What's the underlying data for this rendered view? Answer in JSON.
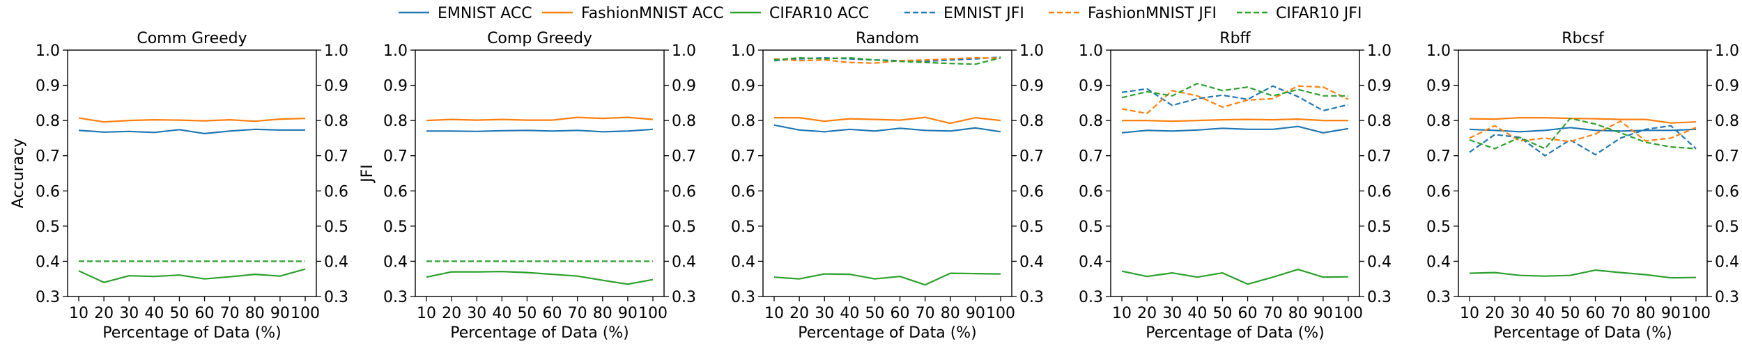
{
  "legend": {
    "placement": "top-center",
    "entries": [
      {
        "label": "EMNIST ACC",
        "color": "#1f77b4",
        "dash": "solid"
      },
      {
        "label": "FashionMNIST ACC",
        "color": "#ff7f0e",
        "dash": "solid"
      },
      {
        "label": "CIFAR10 ACC",
        "color": "#2ca02c",
        "dash": "solid"
      },
      {
        "label": "EMNIST JFI",
        "color": "#1f77b4",
        "dash": "dashed"
      },
      {
        "label": "FashionMNIST JFI",
        "color": "#ff7f0e",
        "dash": "dashed"
      },
      {
        "label": "CIFAR10 JFI",
        "color": "#2ca02c",
        "dash": "dashed"
      }
    ]
  },
  "chart_data": [
    {
      "type": "line",
      "title": "Comm Greedy",
      "xlabel": "Percentage of Data (%)",
      "ylabel": "Accuracy",
      "y2label": "JFI",
      "x": [
        10,
        20,
        30,
        40,
        50,
        60,
        70,
        80,
        90,
        100
      ],
      "ylim": [
        0.3,
        1.0
      ],
      "y2lim": [
        0.3,
        1.0
      ],
      "yticks": [
        "0.3",
        "0.4",
        "0.5",
        "0.6",
        "0.7",
        "0.8",
        "0.9",
        "1.0"
      ],
      "series": [
        {
          "name": "EMNIST ACC",
          "axis": "left",
          "values": [
            0.772,
            0.767,
            0.769,
            0.766,
            0.774,
            0.763,
            0.77,
            0.775,
            0.773,
            0.773
          ]
        },
        {
          "name": "FashionMNIST ACC",
          "axis": "left",
          "values": [
            0.807,
            0.796,
            0.8,
            0.802,
            0.801,
            0.799,
            0.802,
            0.798,
            0.804,
            0.806
          ]
        },
        {
          "name": "CIFAR10 ACC",
          "axis": "left",
          "values": [
            0.373,
            0.34,
            0.359,
            0.357,
            0.361,
            0.35,
            0.356,
            0.363,
            0.358,
            0.378
          ]
        },
        {
          "name": "CIFAR10 JFI",
          "axis": "right",
          "values": [
            0.4,
            0.4,
            0.4,
            0.4,
            0.4,
            0.4,
            0.4,
            0.4,
            0.4,
            0.4
          ]
        }
      ]
    },
    {
      "type": "line",
      "title": "Comp Greedy",
      "xlabel": "Percentage of Data (%)",
      "ylabel": "",
      "y2label": "",
      "x": [
        10,
        20,
        30,
        40,
        50,
        60,
        70,
        80,
        90,
        100
      ],
      "ylim": [
        0.3,
        1.0
      ],
      "y2lim": [
        0.3,
        1.0
      ],
      "yticks": [
        "0.3",
        "0.4",
        "0.5",
        "0.6",
        "0.7",
        "0.8",
        "0.9",
        "1.0"
      ],
      "series": [
        {
          "name": "EMNIST ACC",
          "axis": "left",
          "values": [
            0.77,
            0.77,
            0.769,
            0.771,
            0.772,
            0.77,
            0.772,
            0.768,
            0.77,
            0.775
          ]
        },
        {
          "name": "FashionMNIST ACC",
          "axis": "left",
          "values": [
            0.8,
            0.803,
            0.801,
            0.803,
            0.801,
            0.801,
            0.809,
            0.806,
            0.809,
            0.803
          ]
        },
        {
          "name": "CIFAR10 ACC",
          "axis": "left",
          "values": [
            0.355,
            0.37,
            0.37,
            0.371,
            0.368,
            0.363,
            0.358,
            0.346,
            0.335,
            0.348
          ]
        },
        {
          "name": "CIFAR10 JFI",
          "axis": "right",
          "values": [
            0.4,
            0.4,
            0.4,
            0.4,
            0.4,
            0.4,
            0.4,
            0.4,
            0.4,
            0.4
          ]
        }
      ]
    },
    {
      "type": "line",
      "title": "Random",
      "xlabel": "Percentage of Data (%)",
      "ylabel": "",
      "y2label": "",
      "x": [
        10,
        20,
        30,
        40,
        50,
        60,
        70,
        80,
        90,
        100
      ],
      "ylim": [
        0.3,
        1.0
      ],
      "y2lim": [
        0.3,
        1.0
      ],
      "yticks": [
        "0.3",
        "0.4",
        "0.5",
        "0.6",
        "0.7",
        "0.8",
        "0.9",
        "1.0"
      ],
      "series": [
        {
          "name": "EMNIST ACC",
          "axis": "left",
          "values": [
            0.787,
            0.773,
            0.768,
            0.775,
            0.77,
            0.778,
            0.772,
            0.77,
            0.779,
            0.768
          ]
        },
        {
          "name": "FashionMNIST ACC",
          "axis": "left",
          "values": [
            0.808,
            0.808,
            0.798,
            0.805,
            0.803,
            0.801,
            0.809,
            0.792,
            0.808,
            0.8
          ]
        },
        {
          "name": "CIFAR10 ACC",
          "axis": "left",
          "values": [
            0.355,
            0.35,
            0.364,
            0.363,
            0.35,
            0.357,
            0.333,
            0.366,
            0.365,
            0.364
          ]
        },
        {
          "name": "EMNIST JFI",
          "axis": "right",
          "values": [
            0.97,
            0.975,
            0.978,
            0.975,
            0.972,
            0.97,
            0.968,
            0.972,
            0.975,
            0.98
          ]
        },
        {
          "name": "FashionMNIST JFI",
          "axis": "right",
          "values": [
            0.975,
            0.97,
            0.972,
            0.965,
            0.963,
            0.97,
            0.972,
            0.975,
            0.978,
            0.977
          ]
        },
        {
          "name": "CIFAR10 JFI",
          "axis": "right",
          "values": [
            0.972,
            0.978,
            0.975,
            0.978,
            0.972,
            0.968,
            0.965,
            0.962,
            0.96,
            0.978
          ]
        }
      ]
    },
    {
      "type": "line",
      "title": "Rbff",
      "xlabel": "Percentage of Data (%)",
      "ylabel": "",
      "y2label": "",
      "x": [
        10,
        20,
        30,
        40,
        50,
        60,
        70,
        80,
        90,
        100
      ],
      "ylim": [
        0.3,
        1.0
      ],
      "y2lim": [
        0.3,
        1.0
      ],
      "yticks": [
        "0.3",
        "0.4",
        "0.5",
        "0.6",
        "0.7",
        "0.8",
        "0.9",
        "1.0"
      ],
      "series": [
        {
          "name": "EMNIST ACC",
          "axis": "left",
          "values": [
            0.765,
            0.772,
            0.77,
            0.773,
            0.778,
            0.775,
            0.775,
            0.783,
            0.765,
            0.777
          ]
        },
        {
          "name": "FashionMNIST ACC",
          "axis": "left",
          "values": [
            0.8,
            0.8,
            0.798,
            0.8,
            0.802,
            0.803,
            0.802,
            0.804,
            0.8,
            0.8
          ]
        },
        {
          "name": "CIFAR10 ACC",
          "axis": "left",
          "values": [
            0.372,
            0.357,
            0.367,
            0.355,
            0.367,
            0.335,
            0.355,
            0.377,
            0.355,
            0.356
          ]
        },
        {
          "name": "EMNIST JFI",
          "axis": "right",
          "values": [
            0.88,
            0.89,
            0.843,
            0.862,
            0.872,
            0.86,
            0.898,
            0.868,
            0.828,
            0.845
          ]
        },
        {
          "name": "FashionMNIST JFI",
          "axis": "right",
          "values": [
            0.833,
            0.82,
            0.885,
            0.87,
            0.838,
            0.858,
            0.862,
            0.898,
            0.895,
            0.86
          ]
        },
        {
          "name": "CIFAR10 JFI",
          "axis": "right",
          "values": [
            0.865,
            0.882,
            0.87,
            0.905,
            0.885,
            0.895,
            0.87,
            0.888,
            0.87,
            0.87
          ]
        }
      ]
    },
    {
      "type": "line",
      "title": "Rbcsf",
      "xlabel": "Percentage of Data (%)",
      "ylabel": "",
      "y2label": "",
      "x": [
        10,
        20,
        30,
        40,
        50,
        60,
        70,
        80,
        90,
        100
      ],
      "ylim": [
        0.3,
        1.0
      ],
      "y2lim": [
        0.3,
        1.0
      ],
      "yticks": [
        "0.3",
        "0.4",
        "0.5",
        "0.6",
        "0.7",
        "0.8",
        "0.9",
        "1.0"
      ],
      "series": [
        {
          "name": "EMNIST ACC",
          "axis": "left",
          "values": [
            0.775,
            0.772,
            0.768,
            0.772,
            0.78,
            0.772,
            0.77,
            0.772,
            0.772,
            0.775
          ]
        },
        {
          "name": "FashionMNIST ACC",
          "axis": "left",
          "values": [
            0.805,
            0.804,
            0.808,
            0.808,
            0.806,
            0.805,
            0.803,
            0.803,
            0.793,
            0.796
          ]
        },
        {
          "name": "CIFAR10 ACC",
          "axis": "left",
          "values": [
            0.366,
            0.368,
            0.36,
            0.358,
            0.36,
            0.375,
            0.368,
            0.362,
            0.353,
            0.354
          ]
        },
        {
          "name": "EMNIST JFI",
          "axis": "right",
          "values": [
            0.71,
            0.76,
            0.752,
            0.7,
            0.745,
            0.703,
            0.75,
            0.775,
            0.785,
            0.72
          ]
        },
        {
          "name": "FashionMNIST JFI",
          "axis": "right",
          "values": [
            0.75,
            0.785,
            0.742,
            0.75,
            0.74,
            0.762,
            0.798,
            0.742,
            0.75,
            0.78
          ]
        },
        {
          "name": "CIFAR10 JFI",
          "axis": "right",
          "values": [
            0.745,
            0.72,
            0.752,
            0.72,
            0.806,
            0.79,
            0.765,
            0.738,
            0.725,
            0.72
          ]
        }
      ]
    }
  ]
}
